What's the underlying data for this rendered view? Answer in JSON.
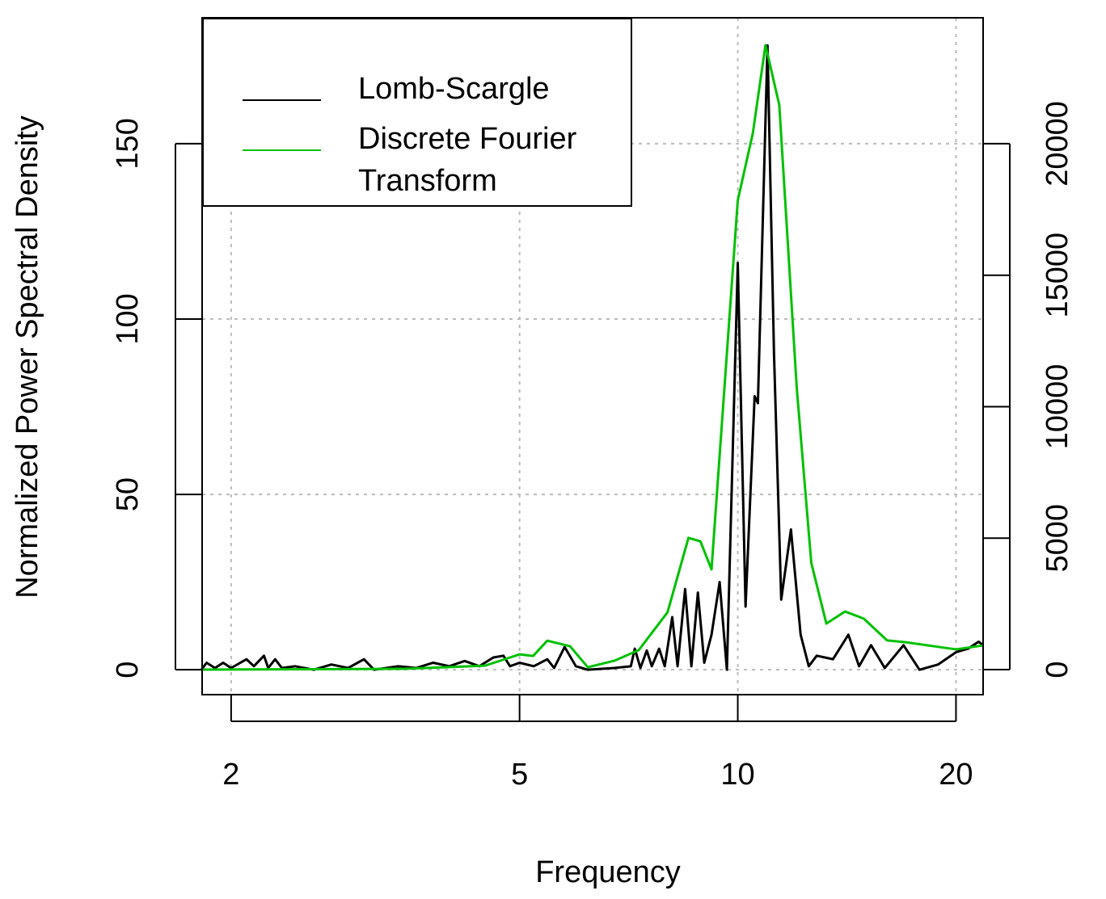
{
  "chart_data": {
    "type": "line",
    "x_label": "Frequency",
    "y_label": "Normalized Power Spectral Density",
    "xscale": "log",
    "xlim": [
      1.824,
      21.8
    ],
    "xticks": [
      2,
      5,
      10,
      20
    ],
    "ylim": [
      -7.1,
      185.9
    ],
    "yticks": [
      0,
      50,
      100,
      150
    ],
    "y2lim": [
      -952,
      24790
    ],
    "y2ticks": [
      0,
      5000,
      10000,
      15000,
      20000
    ],
    "grid": true,
    "legend": "top-left",
    "series": [
      {
        "name": "Lomb-Scargle",
        "color": "#000000",
        "axis": "y",
        "x": [
          1.82,
          1.85,
          1.9,
          1.95,
          2.0,
          2.1,
          2.15,
          2.22,
          2.25,
          2.3,
          2.35,
          2.45,
          2.6,
          2.75,
          2.9,
          3.05,
          3.15,
          3.4,
          3.6,
          3.8,
          4.0,
          4.2,
          4.4,
          4.6,
          4.75,
          4.85,
          5.0,
          5.23,
          5.46,
          5.58,
          5.77,
          5.98,
          6.21,
          6.76,
          7.12,
          7.21,
          7.34,
          7.49,
          7.61,
          7.79,
          7.93,
          8.12,
          8.26,
          8.46,
          8.63,
          8.81,
          8.99,
          9.2,
          9.44,
          9.66,
          10.0,
          10.25,
          10.55,
          10.66,
          10.99,
          11.22,
          11.48,
          11.84,
          12.21,
          12.53,
          12.85,
          13.53,
          14.21,
          14.7,
          15.27,
          15.95,
          16.93,
          17.81,
          18.9,
          20.0,
          20.78,
          21.49,
          21.8
        ],
        "values": [
          0,
          2,
          0.5,
          2,
          0.5,
          3,
          1,
          4,
          0.5,
          3,
          0.5,
          1,
          0,
          1.5,
          0.5,
          3,
          0,
          1,
          0.5,
          2,
          1,
          2.5,
          1,
          3.5,
          4,
          1,
          2,
          1,
          3,
          0.5,
          6.5,
          1,
          0,
          0.5,
          1,
          6,
          0.5,
          5.5,
          1,
          6,
          1,
          15,
          1,
          23,
          1,
          22,
          2,
          10,
          25,
          0,
          116,
          18,
          78,
          76,
          178,
          90,
          20,
          40,
          10,
          1,
          4,
          3,
          10,
          1,
          7,
          0.5,
          7,
          0,
          1.5,
          5,
          6,
          8,
          7
        ]
      },
      {
        "name": "Discrete Fourier Transform",
        "color": "#00c000",
        "axis": "y2",
        "x": [
          1.82,
          3.47,
          4.48,
          5.0,
          5.22,
          5.46,
          5.87,
          6.21,
          6.76,
          7.3,
          8.0,
          8.55,
          8.88,
          9.2,
          10.0,
          10.49,
          10.92,
          11.41,
          12.06,
          12.63,
          13.25,
          14.06,
          14.92,
          16.07,
          17.06,
          20.0,
          21.8
        ],
        "values": [
          0,
          30,
          150,
          580,
          520,
          1100,
          890,
          90,
          340,
          740,
          2180,
          5010,
          4880,
          3810,
          17850,
          20400,
          23750,
          21470,
          10720,
          4060,
          1750,
          2210,
          1940,
          1110,
          1040,
          770,
          920
        ]
      }
    ]
  }
}
